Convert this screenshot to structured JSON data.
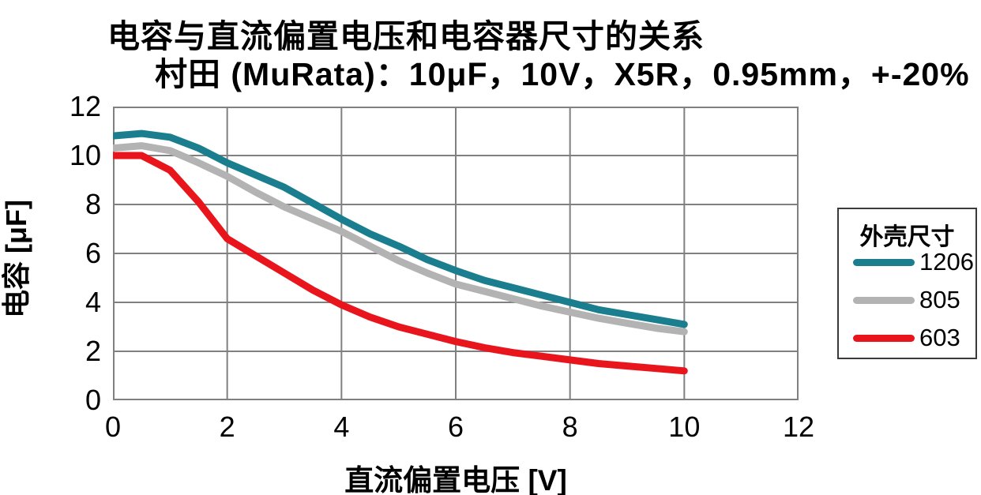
{
  "title": {
    "line1": "电容与直流偏置电压和电容器尺寸的关系",
    "line2": "村田 (MuRata)：10μF，10V，X5R，0.95mm，+-20%"
  },
  "axes": {
    "x_label": "直流偏置电压 [V]",
    "y_label": "电容 [μF]",
    "x_ticks": [
      0,
      2,
      4,
      6,
      8,
      10,
      12
    ],
    "y_ticks": [
      0,
      2,
      4,
      6,
      8,
      10,
      12
    ]
  },
  "legend": {
    "title": "外壳尺寸",
    "position": "right",
    "entries": [
      {
        "label": "1206",
        "color": "#1b7e8f"
      },
      {
        "label": "805",
        "color": "#b3b3b3"
      },
      {
        "label": "603",
        "color": "#e8161c"
      }
    ]
  },
  "colors": {
    "gridline": "#808080",
    "plot_border": "#808080",
    "background": "#ffffff",
    "text": "#000000"
  },
  "chart_data": {
    "type": "line",
    "title": "电容与直流偏置电压和电容器尺寸的关系",
    "subtitle": "村田 (MuRata)：10μF，10V，X5R，0.95mm，+-20%",
    "xlabel": "直流偏置电压 [V]",
    "ylabel": "电容 [μF]",
    "xlim": [
      0,
      12
    ],
    "ylim": [
      0,
      12
    ],
    "grid": true,
    "legend_title": "外壳尺寸",
    "x": [
      0,
      0.5,
      1,
      1.5,
      2,
      2.5,
      3,
      3.5,
      4,
      4.5,
      5,
      5.5,
      6,
      6.5,
      7,
      7.5,
      8,
      8.5,
      9,
      9.5,
      10
    ],
    "series": [
      {
        "name": "1206",
        "color": "#1b7e8f",
        "values": [
          10.8,
          10.9,
          10.75,
          10.3,
          9.7,
          9.2,
          8.7,
          8.05,
          7.4,
          6.8,
          6.3,
          5.75,
          5.3,
          4.9,
          4.6,
          4.3,
          4.0,
          3.7,
          3.5,
          3.3,
          3.1
        ]
      },
      {
        "name": "805",
        "color": "#b3b3b3",
        "values": [
          10.3,
          10.4,
          10.2,
          9.7,
          9.15,
          8.5,
          7.9,
          7.4,
          6.9,
          6.3,
          5.7,
          5.2,
          4.75,
          4.45,
          4.15,
          3.85,
          3.6,
          3.35,
          3.15,
          2.95,
          2.8
        ]
      },
      {
        "name": "603",
        "color": "#e8161c",
        "values": [
          10.0,
          10.0,
          9.4,
          8.1,
          6.6,
          5.9,
          5.2,
          4.5,
          3.9,
          3.4,
          3.0,
          2.7,
          2.4,
          2.15,
          1.95,
          1.8,
          1.65,
          1.5,
          1.4,
          1.3,
          1.2
        ]
      }
    ]
  }
}
